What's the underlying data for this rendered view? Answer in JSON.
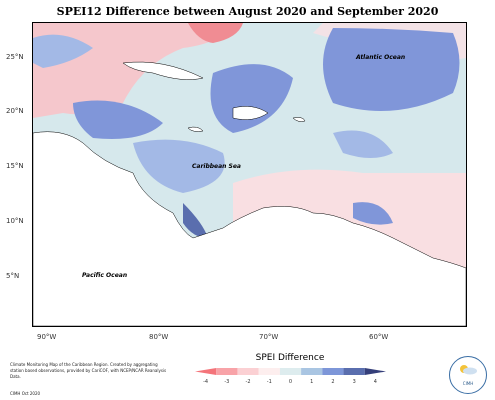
{
  "title": "SPEI12 Difference between August 2020 and September 2020",
  "lat_labels": [
    "25°N",
    "20°N",
    "15°N",
    "10°N",
    "5°N"
  ],
  "lon_labels": [
    "90°W",
    "80°W",
    "70°W",
    "60°W"
  ],
  "oceans": {
    "atlantic": "Atlantic Ocean",
    "caribbean": "Caribbean Sea",
    "pacific": "Pacific Ocean"
  },
  "credits": "Climate Monitoring Map of the Caribbean Region. Created by aggregating station based observations, provided by CariCOF, with NCEP/NCAR Reanalysis Data.",
  "date": "CIMH Oct 2020",
  "legend": {
    "title": "SPEI Difference",
    "ticks": [
      "-4",
      "-3",
      "-2",
      "-1",
      "0",
      "1",
      "2",
      "3",
      "4"
    ],
    "colors": [
      "#f4747a",
      "#f8a3a8",
      "#fbd0d3",
      "#fdeeee",
      "#ddecee",
      "#a9c5e2",
      "#7d96d8",
      "#5a6eae",
      "#353f7a"
    ]
  },
  "logo_text": "CIMH"
}
